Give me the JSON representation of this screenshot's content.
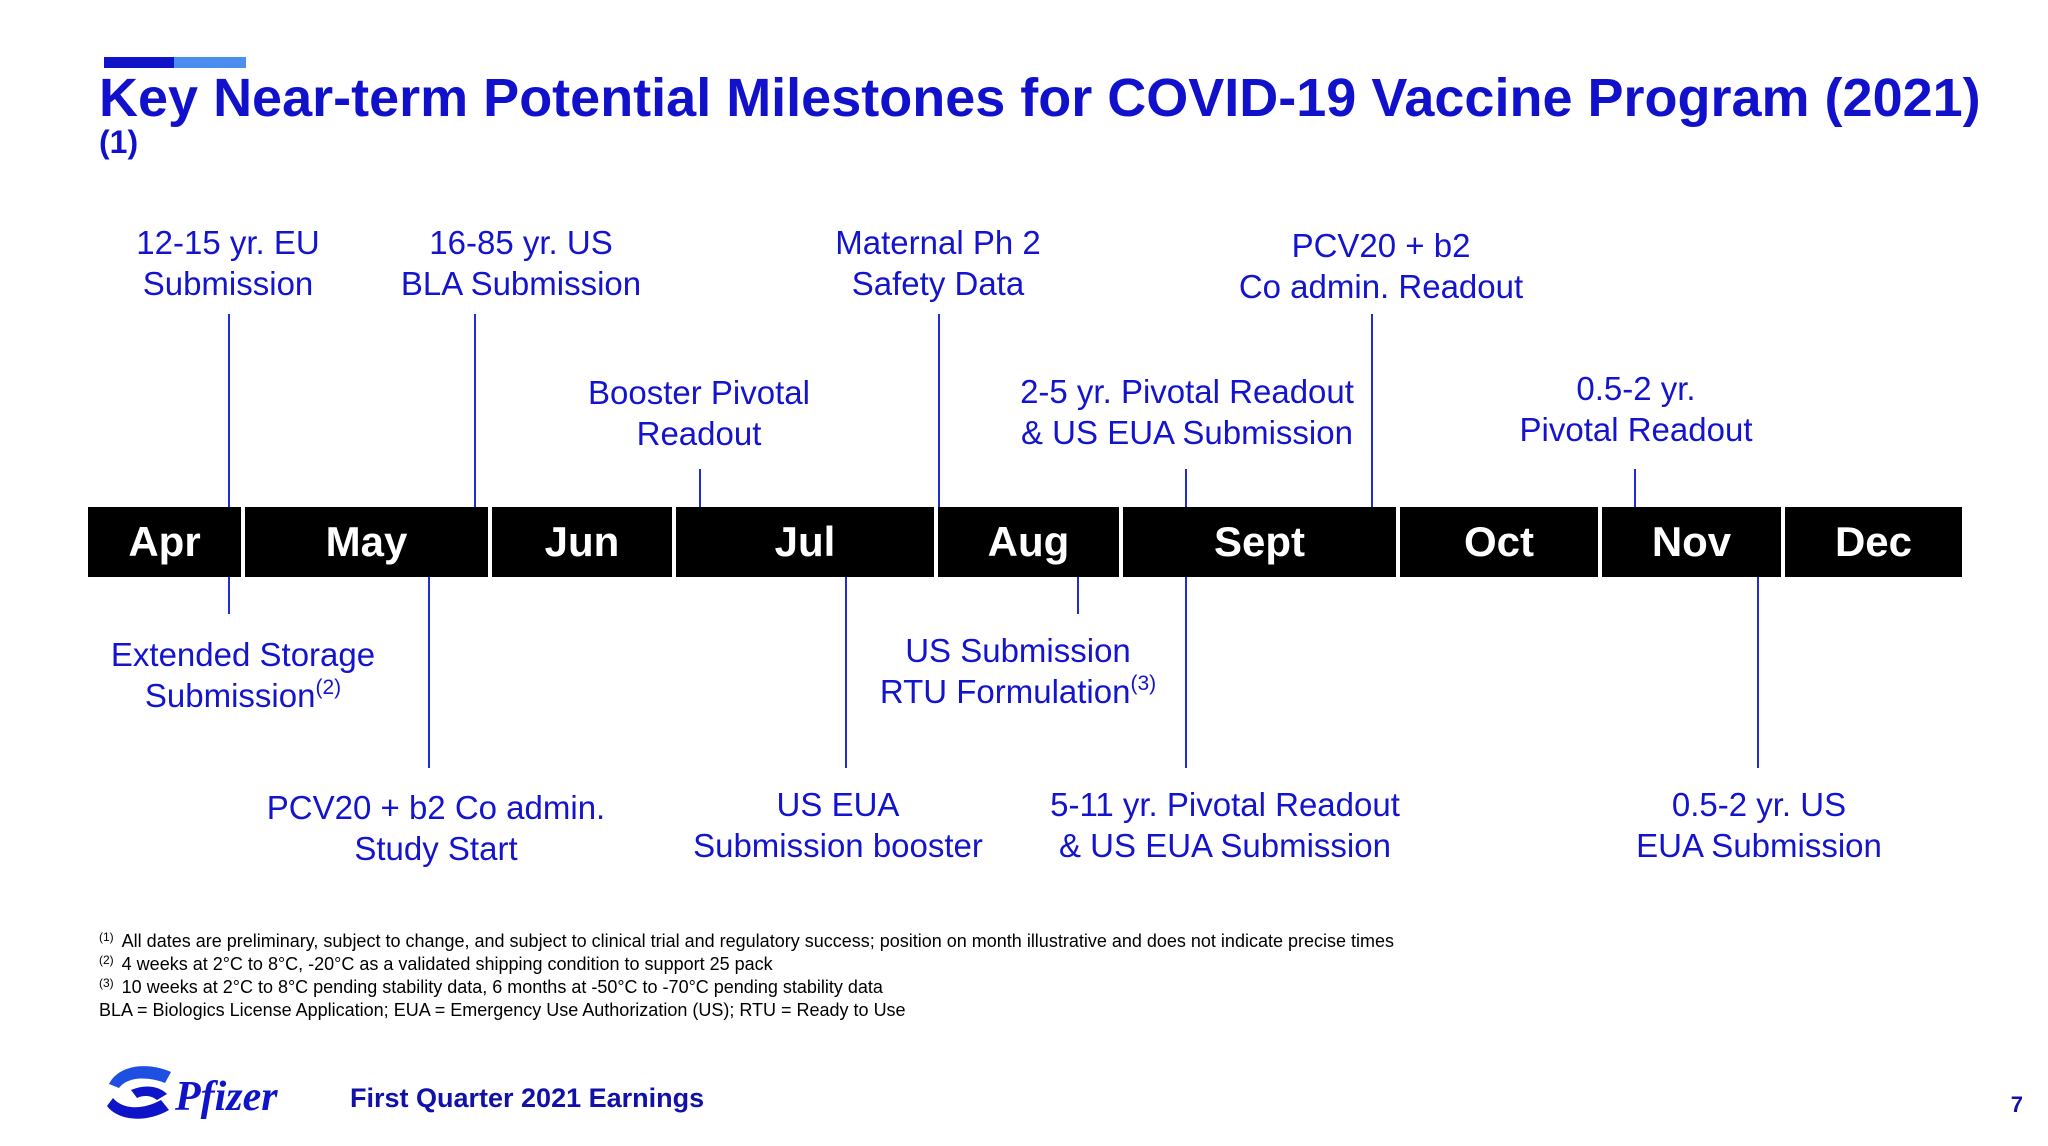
{
  "title": {
    "main": "Key Near-term Potential Milestones for COVID-19 Vaccine Program (2021)",
    "sup": "(1)"
  },
  "months": [
    "Apr",
    "May",
    "Jun",
    "Jul",
    "Aug",
    "Sept",
    "Oct",
    "Nov",
    "Dec"
  ],
  "milestones": {
    "eu_submission": [
      "12-15 yr. EU",
      "Submission"
    ],
    "bla_submission": [
      "16-85 yr. US",
      "BLA Submission"
    ],
    "booster_pivotal": [
      "Booster Pivotal",
      "Readout"
    ],
    "maternal": [
      "Maternal Ph 2",
      "Safety Data"
    ],
    "two_to_five": [
      "2-5 yr. Pivotal Readout",
      "& US EUA Submission"
    ],
    "pcv20_readout": [
      "PCV20 + b2",
      "Co admin. Readout"
    ],
    "half_to_two_readout": [
      "0.5-2 yr.",
      "Pivotal Readout"
    ],
    "extended_storage": [
      "Extended Storage",
      "Submission"
    ],
    "extended_storage_sup": "(2)",
    "pcv20_start": [
      "PCV20 + b2 Co admin.",
      "Study Start"
    ],
    "us_eua_booster": [
      "US EUA",
      "Submission booster"
    ],
    "rtu": [
      "US Submission",
      "RTU Formulation"
    ],
    "rtu_sup": "(3)",
    "five_to_eleven": [
      "5-11 yr. Pivotal Readout",
      "& US EUA Submission"
    ],
    "half_to_two_eua": [
      "0.5-2 yr. US",
      "EUA Submission"
    ]
  },
  "footnotes": [
    {
      "mark": "(1)",
      "text": "All dates are preliminary, subject to change, and subject to clinical trial and regulatory success; position on month illustrative and does not indicate precise times"
    },
    {
      "mark": "(2)",
      "text": "4 weeks at 2°C to 8°C, -20°C as a validated shipping condition to support 25 pack"
    },
    {
      "mark": "(3)",
      "text": "10 weeks at 2°C to 8°C pending stability data, 6 months at -50°C to -70°C pending stability data"
    },
    {
      "mark": "",
      "text": "BLA = Biologics License Application; EUA = Emergency Use Authorization (US); RTU = Ready to Use"
    }
  ],
  "footer": {
    "logo_text": "Pfizer",
    "text": "First Quarter 2021 Earnings",
    "page": "7"
  },
  "colors": {
    "accent_dark": "#0f14c8",
    "accent_light": "#4a8ff0",
    "text_blue": "#1414cc",
    "month_bar": "#000000"
  },
  "icons": [
    "pfizer-logo-icon"
  ]
}
